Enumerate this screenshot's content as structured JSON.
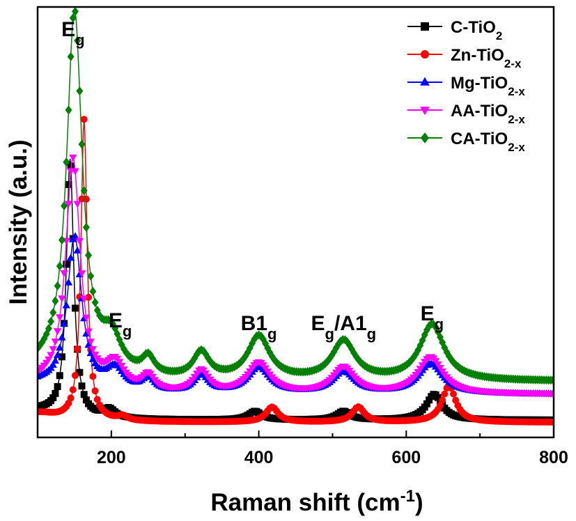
{
  "chart_data": {
    "type": "line",
    "title": "",
    "xlabel_main": "Raman shift (cm",
    "xlabel_sup": "-1",
    "xlabel_close": ")",
    "ylabel": "Intensity (a.u.)",
    "xlim": [
      100,
      800
    ],
    "xticks": [
      200,
      400,
      600,
      800
    ],
    "grid": false,
    "legend_position": "top-right",
    "annotations": [
      {
        "base": "E",
        "sub": "g",
        "x": 148
      },
      {
        "base": "E",
        "sub": "g",
        "x": 212
      },
      {
        "base": "B1",
        "sub": "g",
        "x": 400
      },
      {
        "base": "E",
        "sub": "g",
        "mid": "/A1",
        "sub2": "g",
        "x": 515
      },
      {
        "base": "E",
        "sub": "g",
        "x": 635
      }
    ],
    "series": [
      {
        "name": "C-TiO",
        "sub": "2",
        "color": "#000000",
        "marker": "square",
        "baseline": 0.04,
        "peaks": [
          [
            144,
            0.6,
            6
          ],
          [
            197,
            0.02,
            10
          ],
          [
            395,
            0.02,
            11
          ],
          [
            515,
            0.02,
            11
          ],
          [
            638,
            0.06,
            13
          ]
        ]
      },
      {
        "name": "Zn-TiO",
        "sub": "2-x",
        "color": "#ff0000",
        "marker": "circle",
        "baseline": 0.035,
        "peaks": [
          [
            163,
            0.7,
            5
          ],
          [
            215,
            0.01,
            8
          ],
          [
            418,
            0.035,
            10
          ],
          [
            535,
            0.035,
            10
          ],
          [
            658,
            0.085,
            11
          ]
        ]
      },
      {
        "name": "Mg-TiO",
        "sub": "2-x",
        "color": "#0000ff",
        "marker": "triangle-up",
        "baseline": 0.1,
        "peaks": [
          [
            150,
            0.36,
            12
          ],
          [
            205,
            0.05,
            15
          ],
          [
            250,
            0.03,
            10
          ],
          [
            322,
            0.04,
            12
          ],
          [
            400,
            0.06,
            18
          ],
          [
            515,
            0.05,
            18
          ],
          [
            633,
            0.07,
            20
          ]
        ]
      },
      {
        "name": "AA-TiO",
        "sub": "2-x",
        "color": "#ff00ff",
        "marker": "triangle-down",
        "baseline": 0.1,
        "peaks": [
          [
            148,
            0.54,
            12
          ],
          [
            205,
            0.06,
            15
          ],
          [
            250,
            0.035,
            10
          ],
          [
            322,
            0.05,
            12
          ],
          [
            400,
            0.07,
            18
          ],
          [
            515,
            0.06,
            18
          ],
          [
            633,
            0.085,
            20
          ]
        ]
      },
      {
        "name": "CA-TiO",
        "sub": "2-x",
        "color": "#008000",
        "marker": "diamond",
        "baseline": 0.13,
        "peaks": [
          [
            150,
            0.85,
            13
          ],
          [
            200,
            0.08,
            16
          ],
          [
            250,
            0.04,
            10
          ],
          [
            322,
            0.06,
            13
          ],
          [
            400,
            0.1,
            18
          ],
          [
            515,
            0.09,
            19
          ],
          [
            635,
            0.13,
            20
          ]
        ]
      }
    ]
  }
}
